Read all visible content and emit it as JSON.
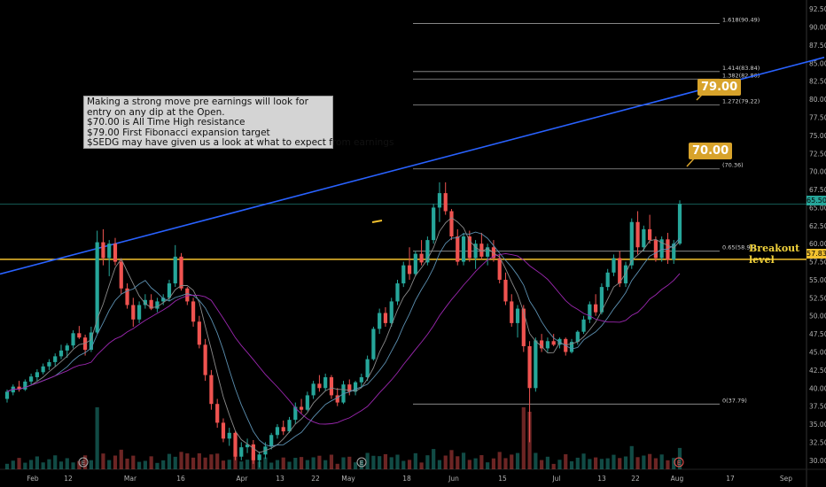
{
  "note": {
    "lines": [
      "Making  a strong move pre earnings will look for",
      "entry on any dip at the Open.",
      "$70.00 is All Time High resistance",
      "$79.00 First Fibonacci expansion target",
      "$SEDG may have given us a look at what to expect from earnings"
    ]
  },
  "targets": {
    "t1": "79.00",
    "t2": "70.00"
  },
  "breakout_label": "Breakout level",
  "price_badges": {
    "last": "65.50",
    "breakout": "57.83"
  },
  "earnings_marker": "E",
  "colors": {
    "up": "#26a69a",
    "down": "#ef5350",
    "trend": "#2962ff",
    "breakout": "#f2c12e",
    "ma1": "#8a8a8a",
    "ma2": "#5b8fb0",
    "ma3": "#9c27b0"
  },
  "chart_data": {
    "type": "candlestick",
    "ylim": [
      28.75,
      93.75
    ],
    "y_ticks": [
      "92.50",
      "90.00",
      "87.50",
      "85.00",
      "82.50",
      "80.00",
      "77.50",
      "75.00",
      "72.50",
      "70.00",
      "67.50",
      "65.00",
      "62.50",
      "60.00",
      "57.50",
      "55.00",
      "52.50",
      "50.00",
      "47.50",
      "45.00",
      "42.50",
      "40.00",
      "37.50",
      "35.00",
      "32.50",
      "30.00"
    ],
    "x_ticks": [
      "Feb",
      "12",
      "Mar",
      "16",
      "Apr",
      "13",
      "22",
      "May",
      "18",
      "Jun",
      "15",
      "Jul",
      "13",
      "22",
      "Aug",
      "17",
      "Sep"
    ],
    "fib_levels": [
      {
        "label": "1.618(90.49)",
        "value": 90.49
      },
      {
        "label": "1.414(83.84)",
        "value": 83.84
      },
      {
        "label": "1.382(82.80)",
        "value": 82.8
      },
      {
        "label": "1.272(79.22)",
        "value": 79.22
      },
      {
        "label": "(70.36)",
        "value": 70.36
      },
      {
        "label": "0.65(58.96)",
        "value": 58.96
      },
      {
        "label": "0(37.79)",
        "value": 37.79
      }
    ],
    "horizontal_lines": [
      {
        "name": "current",
        "value": 65.5
      },
      {
        "name": "breakout",
        "value": 57.83
      }
    ],
    "trendline": {
      "start": [
        0,
        55.8
      ],
      "end": [
        930,
        85.8
      ]
    },
    "candles_ohlc": [
      [
        38.5,
        39.8,
        38.0,
        39.5
      ],
      [
        39.4,
        40.5,
        39.0,
        40.2
      ],
      [
        40.2,
        41.0,
        39.5,
        39.8
      ],
      [
        39.8,
        41.2,
        39.6,
        40.9
      ],
      [
        40.9,
        42.0,
        40.5,
        41.6
      ],
      [
        41.5,
        42.6,
        41.0,
        42.2
      ],
      [
        42.2,
        43.4,
        41.9,
        43.0
      ],
      [
        43.0,
        44.0,
        42.5,
        43.6
      ],
      [
        43.6,
        44.8,
        43.0,
        44.4
      ],
      [
        44.4,
        46.0,
        44.0,
        45.2
      ],
      [
        45.2,
        46.2,
        44.2,
        45.9
      ],
      [
        45.9,
        48.0,
        45.5,
        47.6
      ],
      [
        47.6,
        48.6,
        46.8,
        47.0
      ],
      [
        47.0,
        47.4,
        44.5,
        45.3
      ],
      [
        45.3,
        48.5,
        45.0,
        47.7
      ],
      [
        47.7,
        61.8,
        47.5,
        60.2
      ],
      [
        60.2,
        62.0,
        57.0,
        58.0
      ],
      [
        58.0,
        60.5,
        55.5,
        60.0
      ],
      [
        60.0,
        60.8,
        57.0,
        57.5
      ],
      [
        57.5,
        58.0,
        53.0,
        53.8
      ],
      [
        53.8,
        54.5,
        51.0,
        51.5
      ],
      [
        51.5,
        52.5,
        48.5,
        49.5
      ],
      [
        49.5,
        52.0,
        49.0,
        51.5
      ],
      [
        51.5,
        53.0,
        51.0,
        52.2
      ],
      [
        52.2,
        53.0,
        50.8,
        51.0
      ],
      [
        51.0,
        52.5,
        50.5,
        52.0
      ],
      [
        52.0,
        53.0,
        51.5,
        52.5
      ],
      [
        52.5,
        55.0,
        52.0,
        54.5
      ],
      [
        54.5,
        59.8,
        54.0,
        58.2
      ],
      [
        58.2,
        58.7,
        53.5,
        53.8
      ],
      [
        53.8,
        54.0,
        51.5,
        52.0
      ],
      [
        52.0,
        52.5,
        48.5,
        49.2
      ],
      [
        49.2,
        50.0,
        45.5,
        46.0
      ],
      [
        46.0,
        46.8,
        41.0,
        41.8
      ],
      [
        41.8,
        42.5,
        37.0,
        37.8
      ],
      [
        37.8,
        38.5,
        34.5,
        35.2
      ],
      [
        35.2,
        35.8,
        32.5,
        33.0
      ],
      [
        33.0,
        34.5,
        32.0,
        33.8
      ],
      [
        33.8,
        34.0,
        30.0,
        30.5
      ],
      [
        30.5,
        32.5,
        30.0,
        31.8
      ],
      [
        31.8,
        33.0,
        31.0,
        32.2
      ],
      [
        32.2,
        32.8,
        29.5,
        30.0
      ],
      [
        30.0,
        31.2,
        29.0,
        30.8
      ],
      [
        30.8,
        32.5,
        30.2,
        31.9
      ],
      [
        31.9,
        33.8,
        31.5,
        33.5
      ],
      [
        33.5,
        35.0,
        33.0,
        34.6
      ],
      [
        34.6,
        35.5,
        33.5,
        34.0
      ],
      [
        34.0,
        36.0,
        33.8,
        35.6
      ],
      [
        35.6,
        38.0,
        35.0,
        37.4
      ],
      [
        37.4,
        38.5,
        36.5,
        37.0
      ],
      [
        37.0,
        39.5,
        36.8,
        39.0
      ],
      [
        39.0,
        41.0,
        38.5,
        40.6
      ],
      [
        40.6,
        41.8,
        39.5,
        40.0
      ],
      [
        40.0,
        42.0,
        39.6,
        41.5
      ],
      [
        41.5,
        41.8,
        38.5,
        39.0
      ],
      [
        39.0,
        40.0,
        37.5,
        38.0
      ],
      [
        38.0,
        41.0,
        37.8,
        40.5
      ],
      [
        40.5,
        41.2,
        39.0,
        39.5
      ],
      [
        39.5,
        41.0,
        39.0,
        40.8
      ],
      [
        40.8,
        42.0,
        40.0,
        41.5
      ],
      [
        41.5,
        44.5,
        41.0,
        44.0
      ],
      [
        44.0,
        48.5,
        43.8,
        48.2
      ],
      [
        48.2,
        51.0,
        47.5,
        50.4
      ],
      [
        50.4,
        51.2,
        48.5,
        49.0
      ],
      [
        49.0,
        52.5,
        48.5,
        52.0
      ],
      [
        52.0,
        55.0,
        51.5,
        54.5
      ],
      [
        54.5,
        57.5,
        54.0,
        57.0
      ],
      [
        57.0,
        59.5,
        55.0,
        55.8
      ],
      [
        55.8,
        59.0,
        55.5,
        58.6
      ],
      [
        58.6,
        60.5,
        57.0,
        57.4
      ],
      [
        57.4,
        61.0,
        57.0,
        60.5
      ],
      [
        60.5,
        65.5,
        60.0,
        65.0
      ],
      [
        65.0,
        68.5,
        63.0,
        67.0
      ],
      [
        67.0,
        68.5,
        64.0,
        64.5
      ],
      [
        64.5,
        64.8,
        60.5,
        61.0
      ],
      [
        61.0,
        62.0,
        57.0,
        57.5
      ],
      [
        57.5,
        61.5,
        57.0,
        61.0
      ],
      [
        61.0,
        61.8,
        57.5,
        58.0
      ],
      [
        58.0,
        60.5,
        56.5,
        60.0
      ],
      [
        60.0,
        61.5,
        57.8,
        58.2
      ],
      [
        58.2,
        60.0,
        57.0,
        59.5
      ],
      [
        59.5,
        60.5,
        57.5,
        58.0
      ],
      [
        58.0,
        58.5,
        54.5,
        55.0
      ],
      [
        55.0,
        56.0,
        51.5,
        52.0
      ],
      [
        52.0,
        53.0,
        48.5,
        49.0
      ],
      [
        49.0,
        51.5,
        47.0,
        51.0
      ],
      [
        51.0,
        51.5,
        45.0,
        45.8
      ],
      [
        45.8,
        46.5,
        32.5,
        40.0
      ],
      [
        40.0,
        47.0,
        39.5,
        46.6
      ],
      [
        46.6,
        47.5,
        45.0,
        45.5
      ],
      [
        45.5,
        47.0,
        45.0,
        46.5
      ],
      [
        46.5,
        47.5,
        45.8,
        46.0
      ],
      [
        46.0,
        47.0,
        45.5,
        46.8
      ],
      [
        46.8,
        47.0,
        44.5,
        45.0
      ],
      [
        45.0,
        46.8,
        44.8,
        46.4
      ],
      [
        46.4,
        48.0,
        46.0,
        47.8
      ],
      [
        47.8,
        50.0,
        47.5,
        49.5
      ],
      [
        49.5,
        52.0,
        49.0,
        51.6
      ],
      [
        51.6,
        53.0,
        50.0,
        50.5
      ],
      [
        50.5,
        54.5,
        50.2,
        54.0
      ],
      [
        54.0,
        56.5,
        53.5,
        56.0
      ],
      [
        56.0,
        58.5,
        55.5,
        58.0
      ],
      [
        58.0,
        59.0,
        54.0,
        54.5
      ],
      [
        54.5,
        57.5,
        54.0,
        57.0
      ],
      [
        57.0,
        63.5,
        56.5,
        63.0
      ],
      [
        63.0,
        64.5,
        58.5,
        59.5
      ],
      [
        59.5,
        62.5,
        59.0,
        62.0
      ],
      [
        62.0,
        64.0,
        60.0,
        60.5
      ],
      [
        60.5,
        61.0,
        57.5,
        58.0
      ],
      [
        58.0,
        61.0,
        57.5,
        60.6
      ],
      [
        60.6,
        61.5,
        57.2,
        57.8
      ],
      [
        57.8,
        60.5,
        57.2,
        60.0
      ],
      [
        60.0,
        66.0,
        59.8,
        65.5
      ]
    ]
  }
}
